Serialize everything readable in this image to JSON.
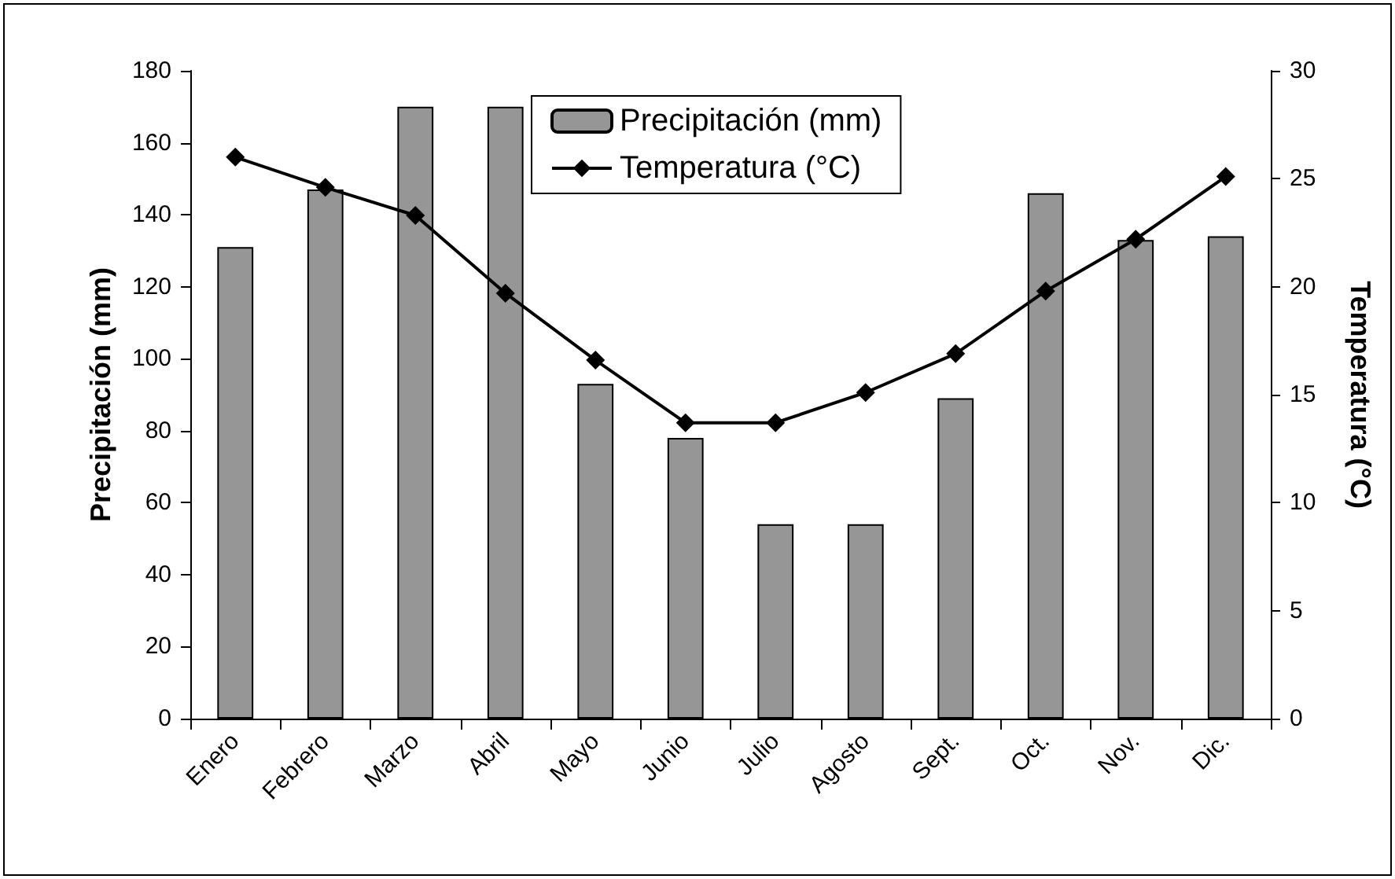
{
  "chart_data": {
    "type": "bar",
    "categories": [
      "Enero",
      "Febrero",
      "Marzo",
      "Abril",
      "Mayo",
      "Junio",
      "Julio",
      "Agosto",
      "Sept.",
      "Oct.",
      "Nov.",
      "Dic."
    ],
    "ylabel": "Precipitación (mm)",
    "y2label": "Temperatura (°C)",
    "series": [
      {
        "name": "Precipitación (mm)",
        "color": "#969696",
        "values": [
          131,
          147,
          170,
          170,
          93,
          78,
          54,
          54,
          89,
          146,
          133,
          134
        ]
      },
      {
        "name": "Temperatura (°C)",
        "type": "line",
        "axis": "y2",
        "color": "#000000",
        "marker": "diamond",
        "values": [
          26.0,
          24.6,
          23.3,
          19.7,
          16.6,
          13.7,
          13.7,
          15.1,
          16.9,
          19.8,
          22.2,
          25.1
        ]
      }
    ],
    "ylim": [
      0,
      180
    ],
    "yticks": [
      0,
      20,
      40,
      60,
      80,
      100,
      120,
      140,
      160,
      180
    ],
    "y2lim": [
      0,
      30
    ],
    "y2ticks": [
      0,
      5,
      10,
      15,
      20,
      25,
      30
    ],
    "grid": false,
    "legend": "top"
  }
}
